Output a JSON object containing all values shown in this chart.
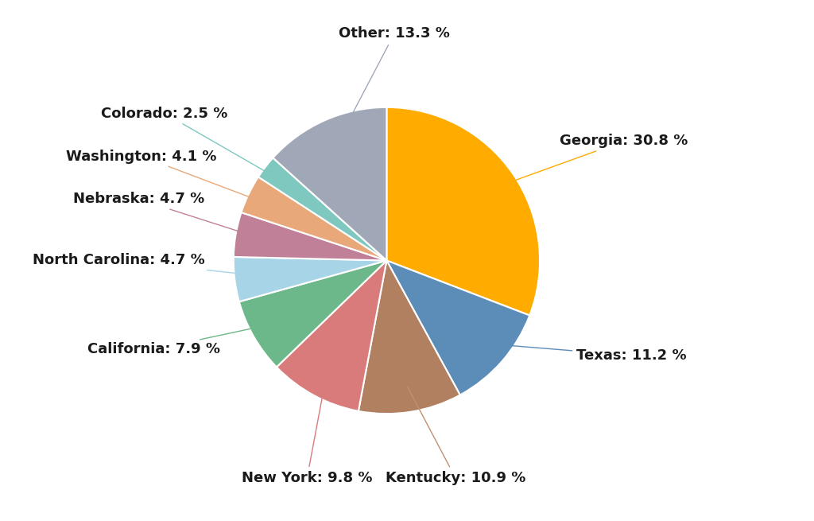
{
  "labels": [
    "Georgia",
    "Texas",
    "Kentucky",
    "New York",
    "California",
    "North Carolina",
    "Nebraska",
    "Washington",
    "Colorado",
    "Other"
  ],
  "values": [
    30.8,
    11.2,
    10.9,
    9.8,
    7.9,
    4.7,
    4.7,
    4.1,
    2.5,
    13.3
  ],
  "colors": [
    "#FFAB00",
    "#5B8DB8",
    "#B08060",
    "#D97B7B",
    "#6DB88A",
    "#A8D4E8",
    "#C08098",
    "#E8A87A",
    "#7EC8C0",
    "#A0A8B8"
  ],
  "line_colors": [
    "#FFAB00",
    "#5B8DB8",
    "#C09070",
    "#D97B7B",
    "#6DB88A",
    "#A8D4E8",
    "#C08098",
    "#E8A87A",
    "#7EC8C0",
    "#A0A8B8"
  ],
  "label_texts": [
    "Georgia: 30.8 %",
    "Texas: 11.2 %",
    "Kentucky: 10.9 %",
    "New York: 9.8 %",
    "California: 7.9 %",
    "North Carolina: 4.7 %",
    "Nebraska: 4.7 %",
    "Washington: 4.1 %",
    "Colorado: 2.5 %",
    "Other: 13.3 %"
  ],
  "background_color": "#ffffff",
  "startangle": 90,
  "label_fontsize": 13,
  "label_fontweight": "bold"
}
